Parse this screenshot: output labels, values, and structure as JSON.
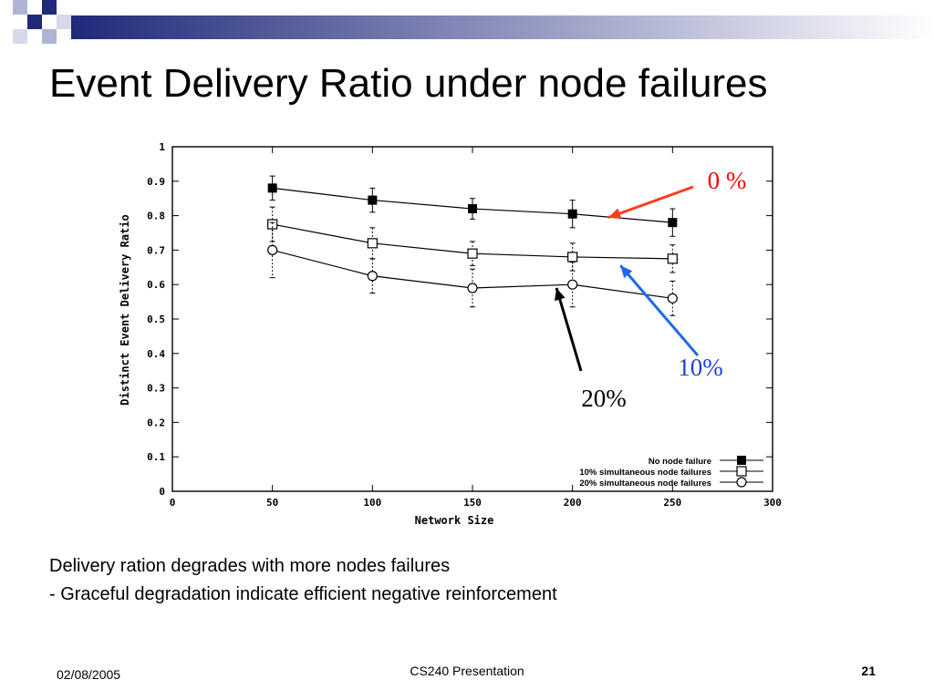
{
  "slide": {
    "title": "Event Delivery Ratio under node failures",
    "caption_lines": [
      "Delivery ration degrades with more nodes failures",
      "- Graceful degradation indicate efficient negative reinforcement"
    ],
    "footer": {
      "date": "02/08/2005",
      "center": "CS240 Presentation",
      "page": "21"
    },
    "annotations": [
      {
        "text": "0 %",
        "color": "#ff0000",
        "arrow_color": "#ff3b1f",
        "points_to_series": "No node failure"
      },
      {
        "text": "10%",
        "color": "#1f3fd6",
        "arrow_color": "#1e6be6",
        "points_to_series": "10% simultaneous node failures"
      },
      {
        "text": "20%",
        "color": "#000000",
        "arrow_color": "#000000",
        "points_to_series": "20% simultaneous node failures"
      }
    ],
    "colors": {
      "banner_dark": "#1f2a7a",
      "banner_light": "#ffffff"
    }
  },
  "chart_data": {
    "type": "line",
    "title": "",
    "xlabel": "Network Size",
    "ylabel": "Distinct Event Delivery Ratio",
    "x": [
      50,
      100,
      150,
      200,
      250
    ],
    "xlim": [
      0,
      300
    ],
    "ylim": [
      0,
      1
    ],
    "x_ticks": [
      "0",
      "50",
      "100",
      "150",
      "200",
      "250",
      "300"
    ],
    "y_ticks": [
      "0",
      "0.1",
      "0.2",
      "0.3",
      "0.4",
      "0.5",
      "0.6",
      "0.7",
      "0.8",
      "0.9",
      "1"
    ],
    "grid": false,
    "legend_position": "bottom-right",
    "series": [
      {
        "name": "No node failure",
        "marker": "filled-square",
        "values": [
          0.88,
          0.845,
          0.82,
          0.805,
          0.78
        ],
        "errors": [
          0.035,
          0.035,
          0.03,
          0.04,
          0.04
        ]
      },
      {
        "name": "10% simultaneous node failures",
        "marker": "open-square",
        "values": [
          0.775,
          0.72,
          0.69,
          0.68,
          0.675
        ],
        "errors": [
          0.05,
          0.045,
          0.035,
          0.04,
          0.04
        ]
      },
      {
        "name": "20% simultaneous node failures",
        "marker": "open-circle",
        "values": [
          0.7,
          0.625,
          0.59,
          0.6,
          0.56
        ],
        "errors": [
          0.08,
          0.05,
          0.055,
          0.065,
          0.05
        ]
      }
    ]
  }
}
